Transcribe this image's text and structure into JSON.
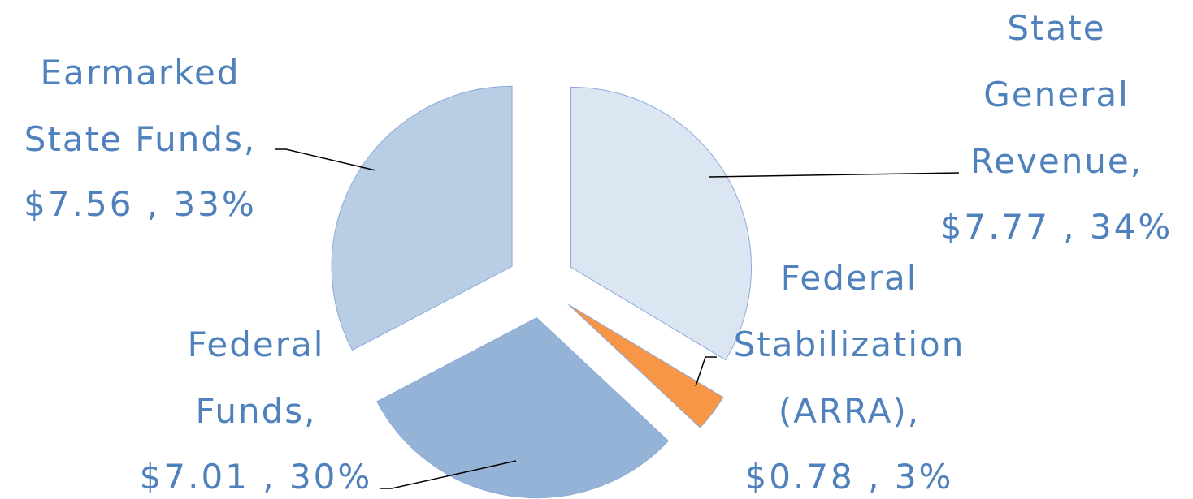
{
  "chart_data": {
    "type": "pie",
    "categories": [
      "State General Revenue,",
      "Federal Stabilization (ARRA),",
      "Federal Funds,",
      "Earmarked State Funds,"
    ],
    "values": [
      7.77,
      0.78,
      7.01,
      7.56
    ],
    "value_labels": [
      "$7.77 , 34%",
      "$0.78 , 3%",
      "$7.01 , 30%",
      "$7.56 , 33%"
    ],
    "colors": [
      "#dce6f2",
      "#f79646",
      "#95b3d7",
      "#b9cde5"
    ]
  }
}
